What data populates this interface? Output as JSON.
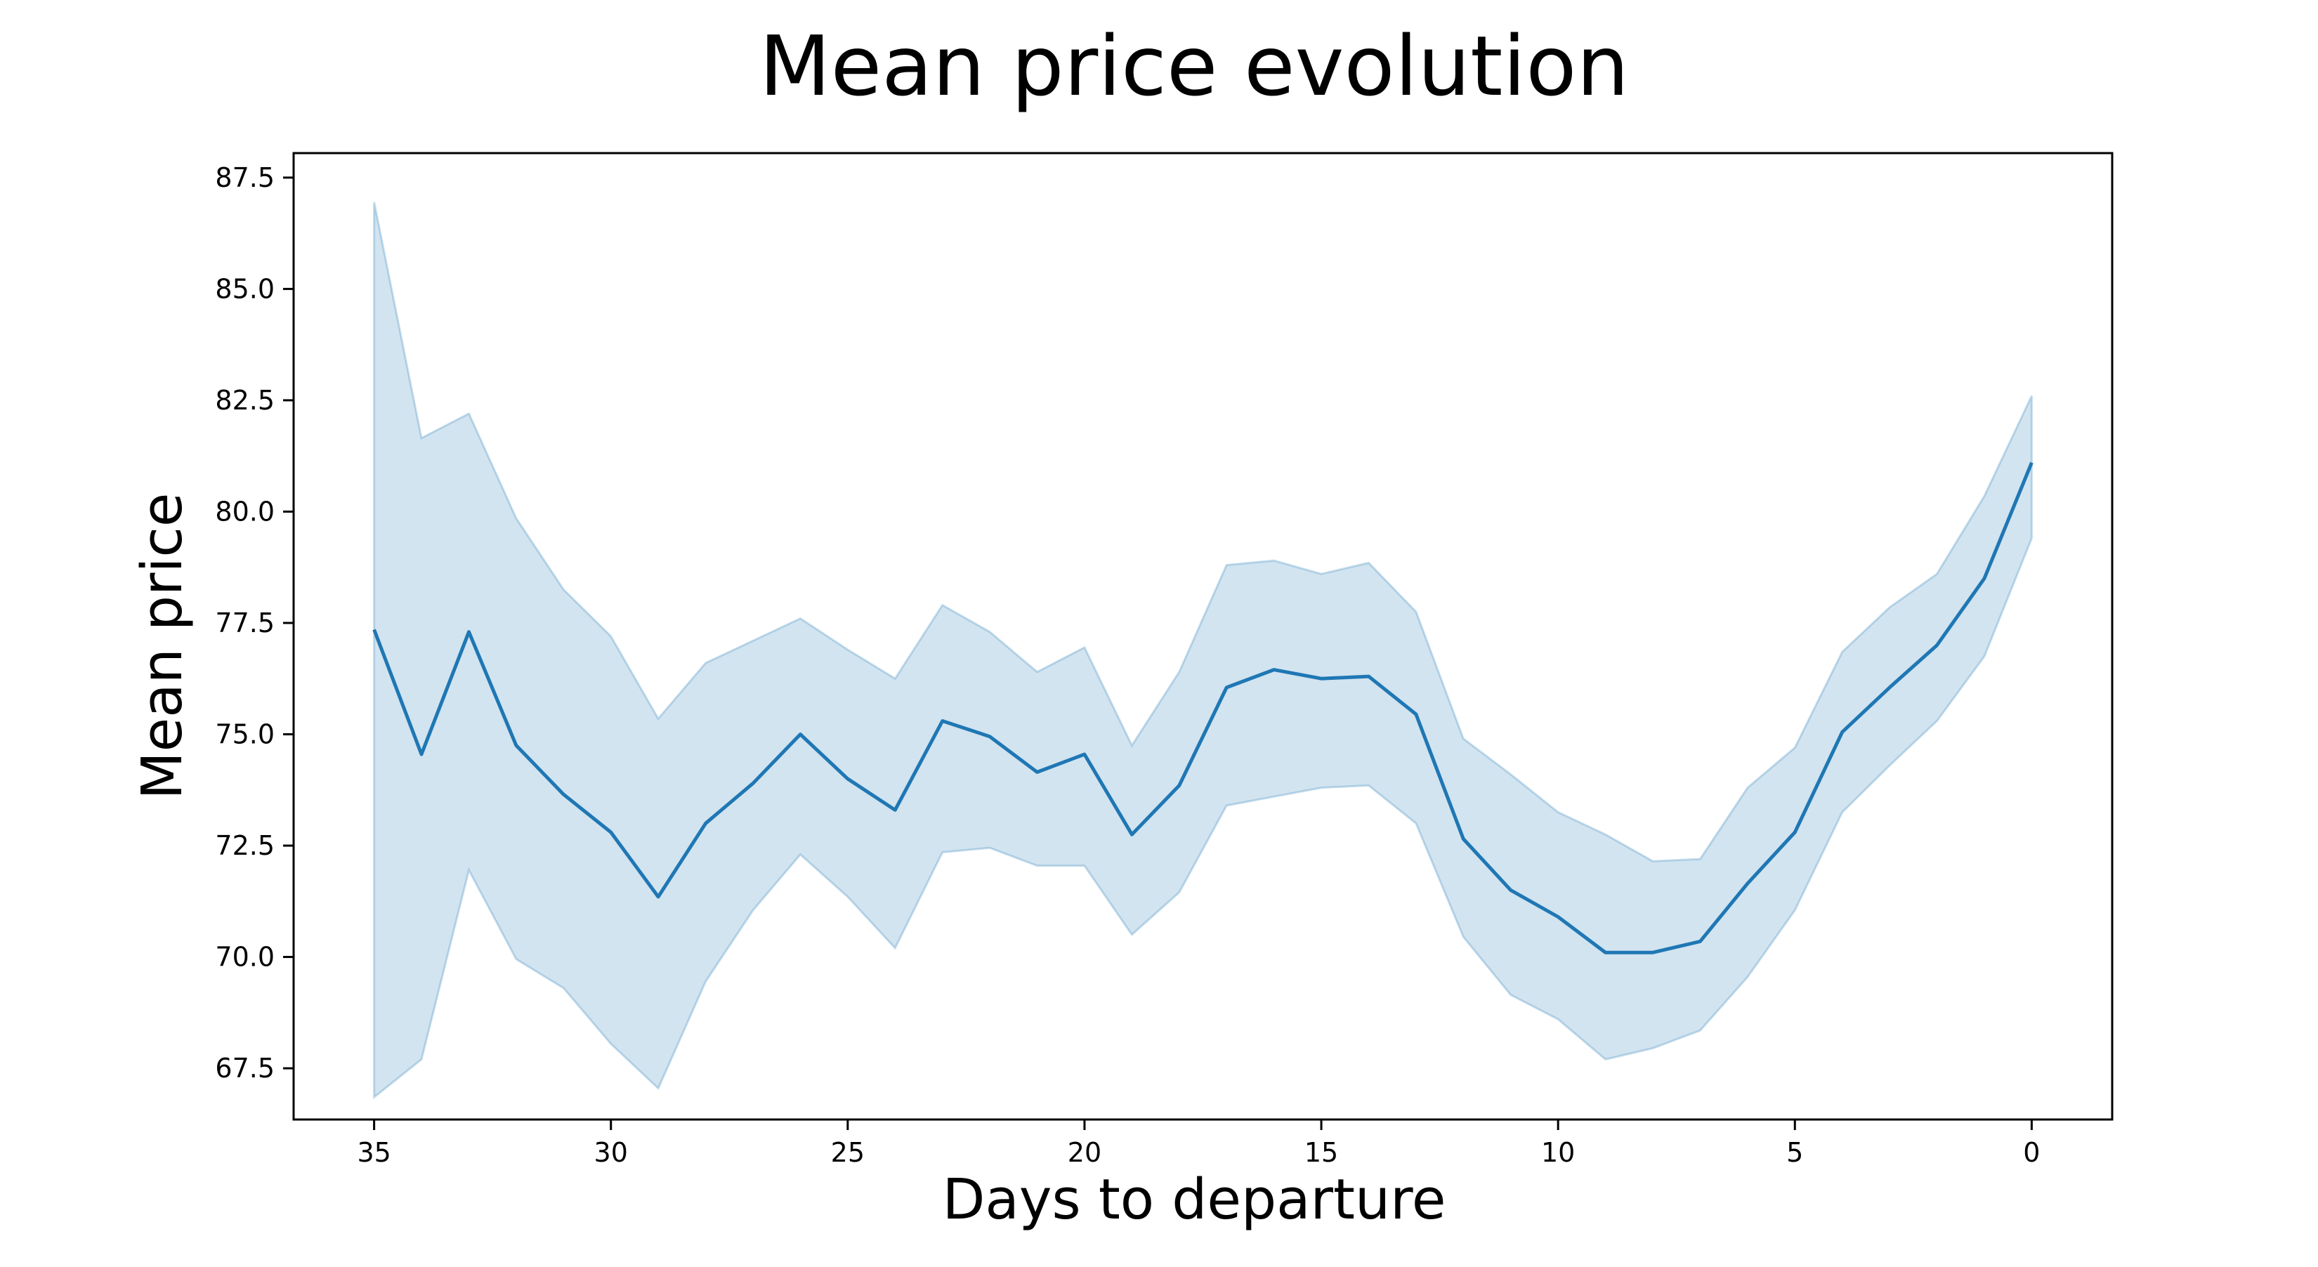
{
  "chart_data": {
    "type": "line",
    "title": "Mean price evolution",
    "xlabel": "Days to departure",
    "ylabel": "Mean price",
    "x_inverted": true,
    "xlim": [
      36.7,
      -1.7
    ],
    "ylim": [
      66.35,
      88.05
    ],
    "xticks": [
      35,
      30,
      25,
      20,
      15,
      10,
      5,
      0
    ],
    "yticks": [
      67.5,
      70.0,
      72.5,
      75.0,
      77.5,
      80.0,
      82.5,
      85.0,
      87.5
    ],
    "ytick_labels": [
      "67.5",
      "70.0",
      "72.5",
      "75.0",
      "77.5",
      "80.0",
      "82.5",
      "85.0",
      "87.5"
    ],
    "grid": false,
    "legend": "none",
    "colors": {
      "line": "#1f77b4",
      "band": "#1f77b4",
      "band_opacity": 0.2
    },
    "series": [
      {
        "x": [
          35,
          34,
          33,
          32,
          31,
          30,
          29,
          28,
          27,
          26,
          25,
          24,
          23,
          22,
          21,
          20,
          19,
          18,
          17,
          16,
          15,
          14,
          13,
          12,
          11,
          10,
          9,
          8,
          7,
          6,
          5,
          4,
          3,
          2,
          1,
          0
        ],
        "values": [
          77.35,
          74.55,
          77.3,
          74.75,
          73.65,
          72.8,
          71.35,
          73.0,
          73.9,
          75.0,
          74.0,
          73.3,
          75.3,
          74.95,
          74.15,
          74.55,
          72.75,
          73.85,
          76.05,
          76.45,
          76.25,
          76.3,
          75.45,
          72.65,
          71.5,
          70.9,
          70.1,
          70.1,
          70.35,
          71.65,
          72.8,
          75.05,
          76.05,
          77.0,
          78.5,
          81.1
        ],
        "upper": [
          86.95,
          81.65,
          82.2,
          79.85,
          78.25,
          77.2,
          75.35,
          76.6,
          77.1,
          77.6,
          76.9,
          76.25,
          77.9,
          77.3,
          76.4,
          76.95,
          74.75,
          76.4,
          78.8,
          78.9,
          78.6,
          78.85,
          77.75,
          74.9,
          74.1,
          73.25,
          72.75,
          72.15,
          72.2,
          73.8,
          74.7,
          76.85,
          77.85,
          78.6,
          80.35,
          82.6
        ],
        "lower": [
          66.85,
          67.7,
          71.95,
          69.95,
          69.3,
          68.05,
          67.05,
          69.45,
          71.05,
          72.3,
          71.35,
          70.2,
          72.35,
          72.45,
          72.05,
          72.05,
          70.5,
          71.45,
          73.4,
          73.6,
          73.8,
          73.85,
          73.0,
          70.45,
          69.15,
          68.6,
          67.7,
          67.95,
          68.35,
          69.55,
          71.05,
          73.25,
          74.3,
          75.3,
          76.75,
          79.4
        ]
      }
    ]
  }
}
